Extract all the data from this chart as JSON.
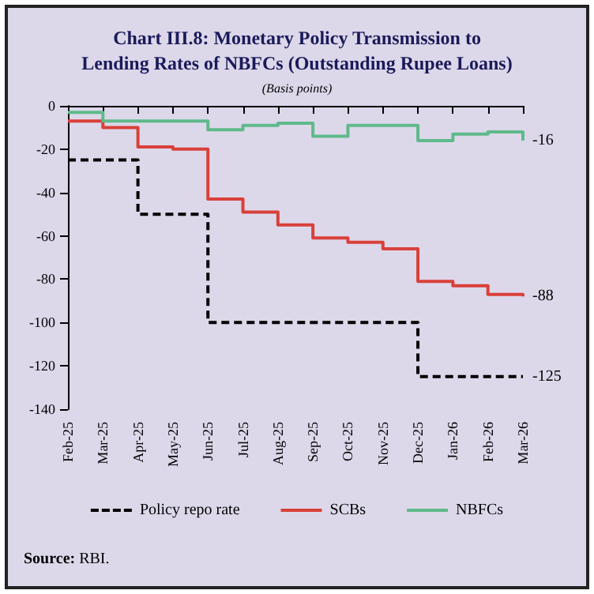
{
  "chart_data": {
    "type": "step",
    "title": "Chart III.8: Monetary Policy Transmission to\nLending Rates of NBFCs (Outstanding Rupee Loans)",
    "subtitle": "(Basis points)",
    "categories": [
      "Feb-25",
      "Mar-25",
      "Apr-25",
      "May-25",
      "Jun-25",
      "Jul-25",
      "Aug-25",
      "Sep-25",
      "Oct-25",
      "Nov-25",
      "Dec-25",
      "Jan-26",
      "Feb-26",
      "Mar-26"
    ],
    "series": [
      {
        "name": "Policy repo rate",
        "color": "#000000",
        "line_style": "dashed",
        "values": [
          -25,
          -25,
          -50,
          -50,
          -100,
          -100,
          -100,
          -100,
          -100,
          -100,
          -125,
          -125,
          -125,
          -125
        ],
        "value_labels": [
          null,
          null,
          null,
          null,
          null,
          null,
          null,
          null,
          null,
          null,
          null,
          null,
          null,
          "-125"
        ]
      },
      {
        "name": "SCBs",
        "color": "#d9403a",
        "line_style": "solid",
        "values": [
          -7,
          -10,
          -19,
          -20,
          -43,
          -49,
          -55,
          -61,
          -63,
          -66,
          -81,
          -83,
          -87,
          -88
        ],
        "value_labels": [
          null,
          null,
          null,
          null,
          null,
          null,
          null,
          null,
          null,
          null,
          null,
          null,
          null,
          "-88"
        ]
      },
      {
        "name": "NBFCs",
        "color": "#5fb98a",
        "line_style": "solid",
        "values": [
          -3,
          -7,
          -7,
          -7,
          -11,
          -9,
          -8,
          -14,
          -9,
          -9,
          -16,
          -13,
          -12,
          -16
        ],
        "value_labels": [
          null,
          null,
          null,
          null,
          null,
          null,
          null,
          null,
          null,
          null,
          null,
          null,
          null,
          "-16"
        ]
      }
    ],
    "ylim": [
      -140,
      0
    ],
    "yticks": [
      -140,
      -120,
      -100,
      -80,
      -60,
      -40,
      -20,
      0
    ],
    "grid": false,
    "legend": "bottom",
    "marker": "none",
    "annotations": [
      "Source: RBI."
    ]
  }
}
